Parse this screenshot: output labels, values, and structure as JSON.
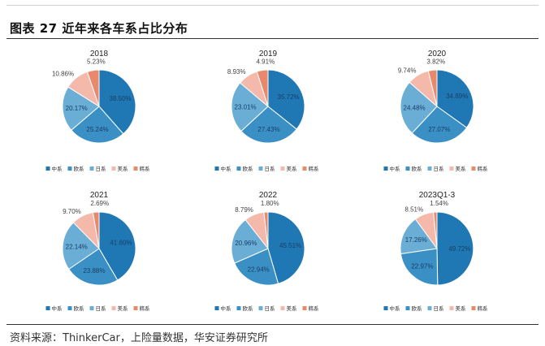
{
  "figure": {
    "title": "图表 27 近年来各车系占比分布",
    "source": "资料来源：ThinkerCar，上险量数据，华安证券研究所"
  },
  "colors": {
    "series": [
      "#1f77b4",
      "#3a8fc4",
      "#6aaed6",
      "#f4b9aa",
      "#e8896d"
    ]
  },
  "chart_data": [
    {
      "type": "pie",
      "title": "2018",
      "legend_position": "bottom",
      "labels": [
        "中系",
        "欧系",
        "日系",
        "美系",
        "韩系"
      ],
      "values": [
        38.5,
        25.24,
        20.17,
        10.86,
        5.23
      ],
      "data_labels": [
        "38.50%",
        "25.24%",
        "20.17%",
        "10.86%",
        "5.23%"
      ]
    },
    {
      "type": "pie",
      "title": "2019",
      "legend_position": "bottom",
      "labels": [
        "中系",
        "欧系",
        "日系",
        "美系",
        "韩系"
      ],
      "values": [
        35.72,
        27.43,
        23.01,
        8.93,
        4.91
      ],
      "data_labels": [
        "35.72%",
        "27.43%",
        "23.01%",
        "8.93%",
        "4.91%"
      ]
    },
    {
      "type": "pie",
      "title": "2020",
      "legend_position": "bottom",
      "labels": [
        "中系",
        "欧系",
        "日系",
        "美系",
        "韩系"
      ],
      "values": [
        34.89,
        27.07,
        24.48,
        9.74,
        3.82
      ],
      "data_labels": [
        "34.89%",
        "27.07%",
        "24.48%",
        "9.74%",
        "3.82%"
      ]
    },
    {
      "type": "pie",
      "title": "2021",
      "legend_position": "bottom",
      "labels": [
        "中系",
        "欧系",
        "日系",
        "美系",
        "韩系"
      ],
      "values": [
        41.6,
        23.88,
        22.14,
        9.7,
        2.69
      ],
      "data_labels": [
        "41.60%",
        "23.88%",
        "22.14%",
        "9.70%",
        "2.69%"
      ]
    },
    {
      "type": "pie",
      "title": "2022",
      "legend_position": "bottom",
      "labels": [
        "中系",
        "欧系",
        "日系",
        "美系",
        "韩系"
      ],
      "values": [
        45.51,
        22.94,
        20.96,
        8.79,
        1.8
      ],
      "data_labels": [
        "45.51%",
        "22.94%",
        "20.96%",
        "8.79%",
        "1.80%"
      ]
    },
    {
      "type": "pie",
      "title": "2023Q1-3",
      "legend_position": "bottom",
      "labels": [
        "中系",
        "欧系",
        "日系",
        "美系",
        "韩系"
      ],
      "values": [
        49.72,
        22.97,
        17.26,
        8.51,
        1.54
      ],
      "data_labels": [
        "49.72%",
        "22.97%",
        "17.26%",
        "8.51%",
        "1.54%"
      ]
    }
  ]
}
